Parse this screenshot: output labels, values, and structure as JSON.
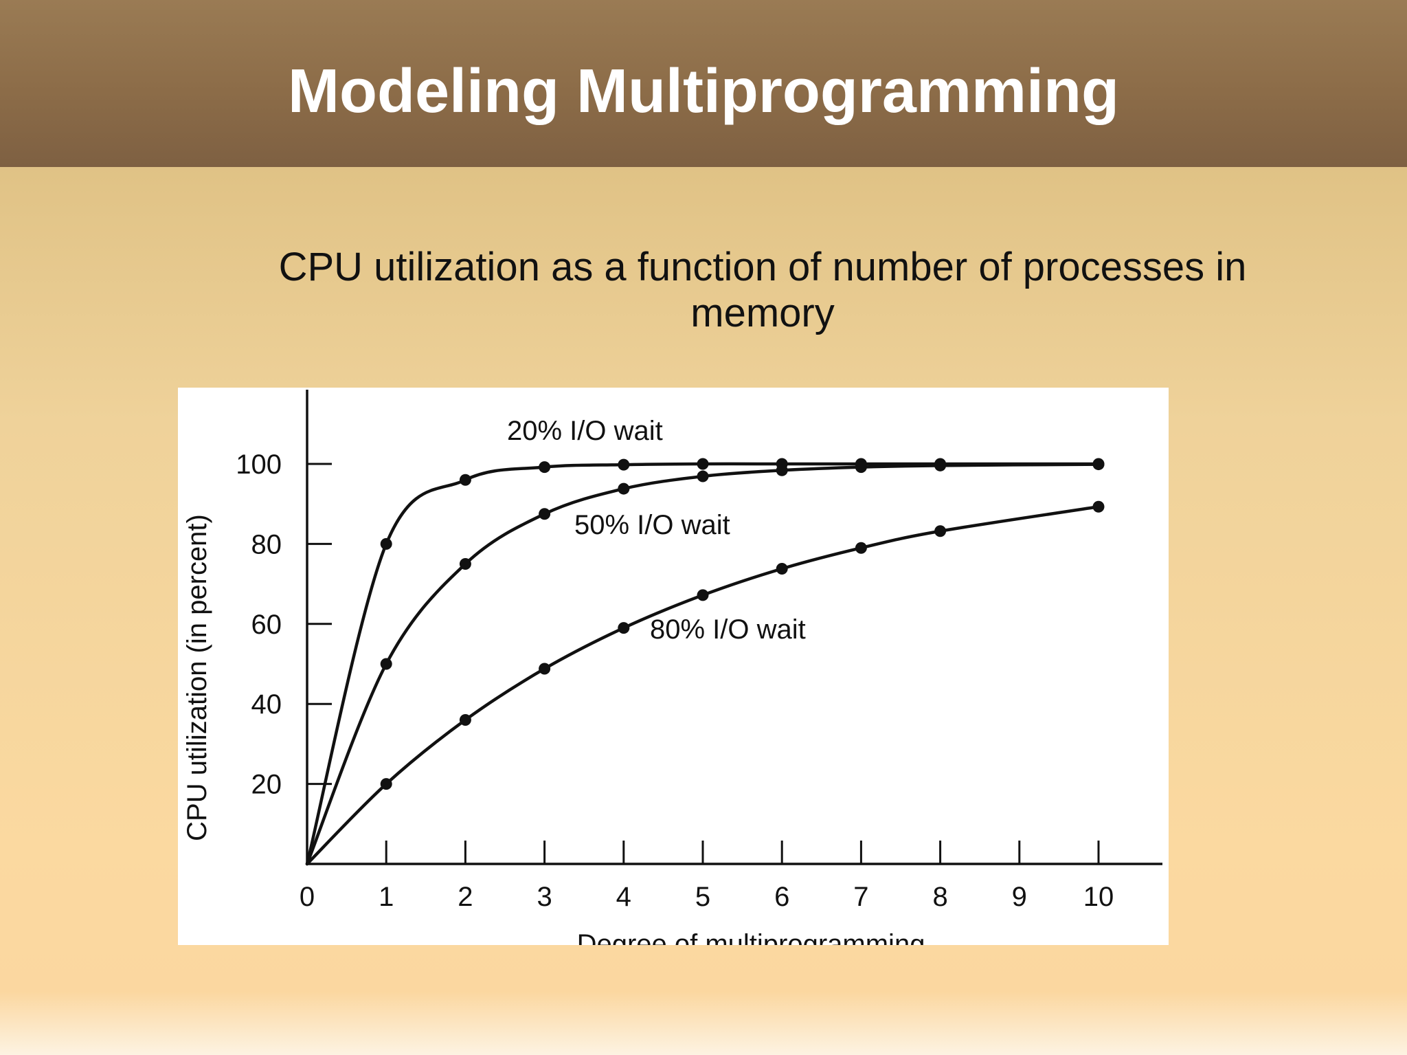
{
  "slide": {
    "title": "Modeling Multiprogramming",
    "subtitle": "CPU utilization as a function of number of processes in memory"
  },
  "chart_data": {
    "type": "line",
    "title": "",
    "xlabel": "Degree of multiprogramming",
    "ylabel": "CPU utilization (in percent)",
    "xlim": [
      0,
      10
    ],
    "ylim": [
      0,
      100
    ],
    "xticks": [
      "0",
      "1",
      "2",
      "3",
      "4",
      "5",
      "6",
      "7",
      "8",
      "9",
      "10"
    ],
    "yticks": [
      "20",
      "40",
      "60",
      "80",
      "100"
    ],
    "grid": false,
    "legend": "none (curves labeled inline)",
    "series": [
      {
        "name": "20% I/O wait",
        "x": [
          0,
          1,
          2,
          3,
          4,
          5,
          6,
          7,
          8,
          10
        ],
        "values": [
          0,
          80,
          96,
          99.2,
          99.8,
          100,
          100,
          100,
          100,
          100
        ]
      },
      {
        "name": "50% I/O wait",
        "x": [
          0,
          1,
          2,
          3,
          4,
          5,
          6,
          7,
          8,
          10
        ],
        "values": [
          0,
          50,
          75,
          87.5,
          93.8,
          96.9,
          98.4,
          99.2,
          99.6,
          99.9
        ]
      },
      {
        "name": "80% I/O wait",
        "x": [
          0,
          1,
          2,
          3,
          4,
          5,
          6,
          7,
          8,
          10
        ],
        "values": [
          0,
          20,
          36,
          48.8,
          59,
          67.2,
          73.8,
          79,
          83.2,
          89.3
        ]
      }
    ]
  }
}
